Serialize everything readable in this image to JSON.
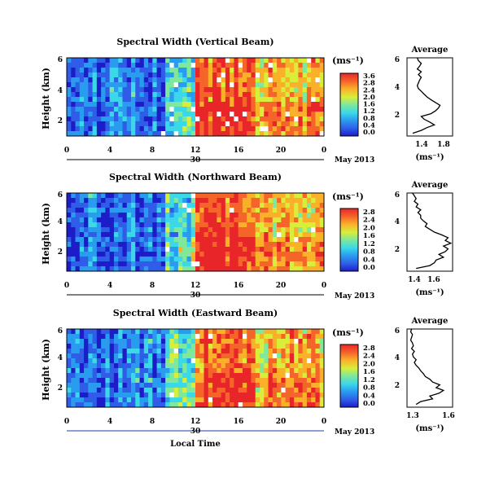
{
  "chart_data": [
    {
      "type": "heatmap",
      "title": "Spectral Width (Vertical Beam)",
      "ylabel": "Height (km)",
      "y_ticks": [
        "2",
        "4",
        "6"
      ],
      "x_ticks": [
        "0",
        "4",
        "8",
        "12",
        "16",
        "20",
        "0"
      ],
      "date_day": "30",
      "date_label": "May 2013",
      "colorbar_unit": "(ms⁻¹)",
      "colorbar_ticks": [
        "0.0",
        "0.4",
        "0.8",
        "1.2",
        "1.6",
        "2.0",
        "2.4",
        "2.8",
        "3.6"
      ],
      "average": {
        "title": "Average",
        "xlabel": "(ms⁻¹)",
        "x_ticks": [
          "1.4",
          "1.8"
        ],
        "y_ticks": [
          "2",
          "4",
          "6"
        ],
        "xlim": [
          1.2,
          2.0
        ],
        "ylim": [
          0.4,
          6.0
        ],
        "height": [
          0.6,
          0.8,
          1.0,
          1.2,
          1.4,
          1.6,
          1.8,
          2.0,
          2.2,
          2.4,
          2.6,
          2.8,
          3.0,
          3.2,
          3.4,
          3.6,
          3.8,
          4.0,
          4.2,
          4.4,
          4.6,
          4.8,
          5.0,
          5.2,
          5.4,
          5.6,
          5.8,
          6.0
        ],
        "value": [
          1.3,
          1.45,
          1.55,
          1.68,
          1.6,
          1.5,
          1.45,
          1.62,
          1.7,
          1.75,
          1.78,
          1.7,
          1.62,
          1.55,
          1.5,
          1.45,
          1.4,
          1.38,
          1.4,
          1.42,
          1.45,
          1.4,
          1.45,
          1.38,
          1.42,
          1.45,
          1.4,
          1.38
        ]
      }
    },
    {
      "type": "heatmap",
      "title": "Spectral Width (Northward Beam)",
      "ylabel": "Height (km)",
      "y_ticks": [
        "2",
        "4",
        "6"
      ],
      "x_ticks": [
        "0",
        "4",
        "8",
        "12",
        "16",
        "20",
        "0"
      ],
      "date_day": "30",
      "date_label": "May 2013",
      "colorbar_unit": "(ms⁻¹)",
      "colorbar_ticks": [
        "0.0",
        "0.4",
        "0.8",
        "1.2",
        "1.6",
        "2.0",
        "2.4",
        "2.8"
      ],
      "average": {
        "title": "Average",
        "xlabel": "(ms⁻¹)",
        "x_ticks": [
          "1.4",
          "1.6"
        ],
        "y_ticks": [
          "2",
          "4",
          "6"
        ],
        "xlim": [
          1.3,
          1.8
        ],
        "ylim": [
          0.4,
          6.0
        ],
        "height": [
          0.6,
          0.8,
          1.0,
          1.2,
          1.4,
          1.6,
          1.8,
          2.0,
          2.2,
          2.4,
          2.6,
          2.8,
          3.0,
          3.2,
          3.4,
          3.6,
          3.8,
          4.0,
          4.2,
          4.4,
          4.6,
          4.8,
          5.0,
          5.2,
          5.4,
          5.6,
          5.8,
          6.0
        ],
        "value": [
          1.4,
          1.55,
          1.6,
          1.62,
          1.7,
          1.65,
          1.72,
          1.75,
          1.7,
          1.78,
          1.72,
          1.75,
          1.68,
          1.6,
          1.55,
          1.5,
          1.52,
          1.48,
          1.45,
          1.45,
          1.42,
          1.45,
          1.4,
          1.42,
          1.38,
          1.4,
          1.38,
          1.36
        ]
      }
    },
    {
      "type": "heatmap",
      "title": "Spectral Width (Eastward Beam)",
      "ylabel": "Height (km)",
      "y_ticks": [
        "2",
        "4",
        "6"
      ],
      "x_ticks": [
        "0",
        "4",
        "8",
        "12",
        "16",
        "20",
        "0"
      ],
      "date_day": "30",
      "date_label": "May 2013",
      "xlabel": "Local Time",
      "colorbar_unit": "(ms⁻¹)",
      "colorbar_ticks": [
        "0.0",
        "0.4",
        "0.8",
        "1.2",
        "1.6",
        "2.0",
        "2.4",
        "2.8"
      ],
      "average": {
        "title": "Average",
        "xlabel": "(ms⁻¹)",
        "x_ticks": [
          "1.3",
          "1.6"
        ],
        "y_ticks": [
          "2",
          "4",
          "6"
        ],
        "xlim": [
          1.2,
          1.7
        ],
        "ylim": [
          0.4,
          6.0
        ],
        "height": [
          0.6,
          0.8,
          1.0,
          1.2,
          1.4,
          1.6,
          1.8,
          2.0,
          2.2,
          2.4,
          2.6,
          2.8,
          3.0,
          3.2,
          3.4,
          3.6,
          3.8,
          4.0,
          4.2,
          4.4,
          4.6,
          4.8,
          5.0,
          5.2,
          5.4,
          5.6,
          5.8,
          6.0
        ],
        "value": [
          1.3,
          1.35,
          1.48,
          1.45,
          1.55,
          1.6,
          1.52,
          1.56,
          1.48,
          1.45,
          1.4,
          1.38,
          1.35,
          1.33,
          1.3,
          1.28,
          1.3,
          1.27,
          1.26,
          1.28,
          1.25,
          1.27,
          1.26,
          1.24,
          1.25,
          1.26,
          1.24,
          1.25
        ]
      }
    }
  ]
}
